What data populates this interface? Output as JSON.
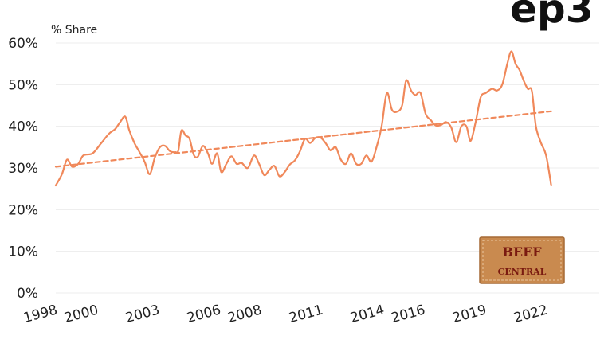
{
  "brand_logo": "ep3",
  "watermark": {
    "line1": "BEEF",
    "line2": "CENTRAL"
  },
  "chart_data": {
    "type": "line",
    "title": "",
    "xlabel": "",
    "ylabel": "% Share",
    "ylim": [
      0,
      60
    ],
    "xlim": [
      1998,
      2024.6
    ],
    "y_ticks": [
      "0%",
      "10%",
      "20%",
      "30%",
      "40%",
      "50%",
      "60%"
    ],
    "x_ticks": [
      "1998",
      "2000",
      "2003",
      "2006",
      "2008",
      "2011",
      "2014",
      "2016",
      "2019",
      "2022"
    ],
    "grid": "horizontal",
    "colors": {
      "series": "#f0885a",
      "grid": "#ececec",
      "text": "#222222"
    },
    "series": [
      {
        "style": "solid",
        "points": [
          [
            1998.0,
            25.8
          ],
          [
            1998.3,
            28.5
          ],
          [
            1998.55,
            32.0
          ],
          [
            1998.8,
            30.3
          ],
          [
            1999.1,
            31.0
          ],
          [
            1999.35,
            33.0
          ],
          [
            1999.8,
            33.5
          ],
          [
            2000.2,
            35.8
          ],
          [
            2000.6,
            38.2
          ],
          [
            2000.9,
            39.3
          ],
          [
            2001.15,
            41.0
          ],
          [
            2001.4,
            42.3
          ],
          [
            2001.6,
            39.0
          ],
          [
            2001.85,
            36.0
          ],
          [
            2002.1,
            33.8
          ],
          [
            2002.35,
            31.5
          ],
          [
            2002.6,
            28.5
          ],
          [
            2002.85,
            32.5
          ],
          [
            2003.1,
            35.0
          ],
          [
            2003.35,
            35.3
          ],
          [
            2003.6,
            34.0
          ],
          [
            2003.85,
            33.8
          ],
          [
            2004.0,
            34.2
          ],
          [
            2004.15,
            39.0
          ],
          [
            2004.35,
            37.8
          ],
          [
            2004.55,
            37.0
          ],
          [
            2004.75,
            33.2
          ],
          [
            2004.95,
            32.7
          ],
          [
            2005.2,
            35.3
          ],
          [
            2005.45,
            33.5
          ],
          [
            2005.65,
            31.0
          ],
          [
            2005.9,
            33.5
          ],
          [
            2006.1,
            29.0
          ],
          [
            2006.35,
            31.0
          ],
          [
            2006.6,
            32.8
          ],
          [
            2006.85,
            31.0
          ],
          [
            2007.1,
            31.2
          ],
          [
            2007.4,
            30.0
          ],
          [
            2007.7,
            33.0
          ],
          [
            2007.95,
            31.0
          ],
          [
            2008.2,
            28.3
          ],
          [
            2008.45,
            29.5
          ],
          [
            2008.7,
            30.5
          ],
          [
            2008.95,
            28.0
          ],
          [
            2009.2,
            29.0
          ],
          [
            2009.45,
            30.8
          ],
          [
            2009.7,
            31.8
          ],
          [
            2009.95,
            34.0
          ],
          [
            2010.2,
            37.0
          ],
          [
            2010.45,
            36.0
          ],
          [
            2010.7,
            37.2
          ],
          [
            2010.95,
            37.3
          ],
          [
            2011.2,
            36.0
          ],
          [
            2011.45,
            34.2
          ],
          [
            2011.7,
            35.0
          ],
          [
            2011.95,
            32.0
          ],
          [
            2012.2,
            31.0
          ],
          [
            2012.45,
            33.5
          ],
          [
            2012.7,
            31.0
          ],
          [
            2012.95,
            31.0
          ],
          [
            2013.2,
            33.0
          ],
          [
            2013.45,
            31.5
          ],
          [
            2013.7,
            35.0
          ],
          [
            2013.95,
            40.0
          ],
          [
            2014.2,
            48.0
          ],
          [
            2014.45,
            44.0
          ],
          [
            2014.7,
            43.5
          ],
          [
            2014.95,
            45.0
          ],
          [
            2015.15,
            51.0
          ],
          [
            2015.4,
            48.5
          ],
          [
            2015.6,
            47.5
          ],
          [
            2015.85,
            48.0
          ],
          [
            2016.1,
            43.0
          ],
          [
            2016.35,
            41.5
          ],
          [
            2016.6,
            40.2
          ],
          [
            2016.85,
            40.3
          ],
          [
            2017.1,
            41.0
          ],
          [
            2017.35,
            39.8
          ],
          [
            2017.6,
            36.2
          ],
          [
            2017.85,
            40.0
          ],
          [
            2018.1,
            40.0
          ],
          [
            2018.3,
            36.5
          ],
          [
            2018.55,
            41.0
          ],
          [
            2018.8,
            47.0
          ],
          [
            2019.05,
            48.0
          ],
          [
            2019.35,
            49.0
          ],
          [
            2019.6,
            48.6
          ],
          [
            2019.85,
            50.0
          ],
          [
            2020.1,
            55.0
          ],
          [
            2020.3,
            58.0
          ],
          [
            2020.5,
            55.0
          ],
          [
            2020.7,
            53.5
          ],
          [
            2020.9,
            51.0
          ],
          [
            2021.1,
            49.0
          ],
          [
            2021.3,
            48.5
          ],
          [
            2021.5,
            40.0
          ],
          [
            2021.75,
            36.0
          ],
          [
            2022.0,
            33.0
          ],
          [
            2022.25,
            25.8
          ]
        ]
      },
      {
        "style": "dashed",
        "points": [
          [
            1998.0,
            30.3
          ],
          [
            2022.25,
            43.6
          ]
        ]
      }
    ]
  }
}
